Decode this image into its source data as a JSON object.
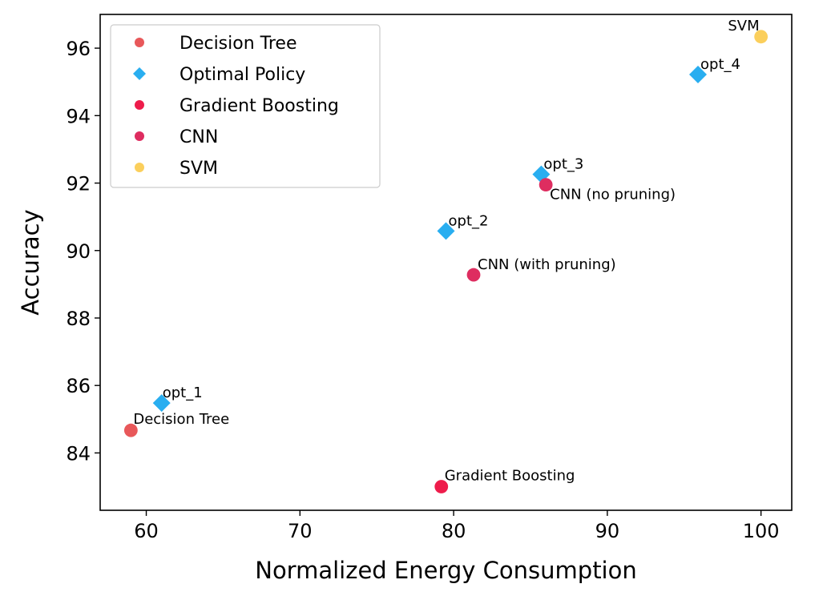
{
  "chart_data": {
    "type": "scatter",
    "title": "",
    "xlabel": "Normalized Energy Consumption",
    "ylabel": "Accuracy",
    "xlim": [
      57,
      102
    ],
    "ylim": [
      82.3,
      97.0
    ],
    "xticks": [
      60,
      70,
      80,
      90,
      100
    ],
    "yticks": [
      84,
      86,
      88,
      90,
      92,
      94,
      96
    ],
    "grid": false,
    "legend_position": "top-left",
    "series": [
      {
        "name": "Decision Tree",
        "marker": "circle",
        "color": "#e8585a",
        "points": [
          {
            "x": 59.0,
            "y": 84.67,
            "label": "Decision Tree"
          }
        ]
      },
      {
        "name": "Optimal Policy",
        "marker": "diamond",
        "color": "#29aef0",
        "points": [
          {
            "x": 61.0,
            "y": 85.48,
            "label": "opt_1"
          },
          {
            "x": 79.5,
            "y": 90.58,
            "label": "opt_2"
          },
          {
            "x": 85.7,
            "y": 92.26,
            "label": "opt_3"
          },
          {
            "x": 95.9,
            "y": 95.22,
            "label": "opt_4"
          }
        ]
      },
      {
        "name": "Gradient Boosting",
        "marker": "circle",
        "color": "#ee1c4b",
        "points": [
          {
            "x": 79.2,
            "y": 83.0,
            "label": "Gradient Boosting"
          }
        ]
      },
      {
        "name": "CNN",
        "marker": "circle",
        "color": "#de2d60",
        "points": [
          {
            "x": 81.3,
            "y": 89.28,
            "label": "CNN (with pruning)"
          },
          {
            "x": 86.0,
            "y": 91.95,
            "label": "CNN (no pruning)"
          }
        ]
      },
      {
        "name": "SVM",
        "marker": "circle",
        "color": "#fbcf5c",
        "points": [
          {
            "x": 100.0,
            "y": 96.34,
            "label": "SVM"
          }
        ]
      }
    ]
  }
}
